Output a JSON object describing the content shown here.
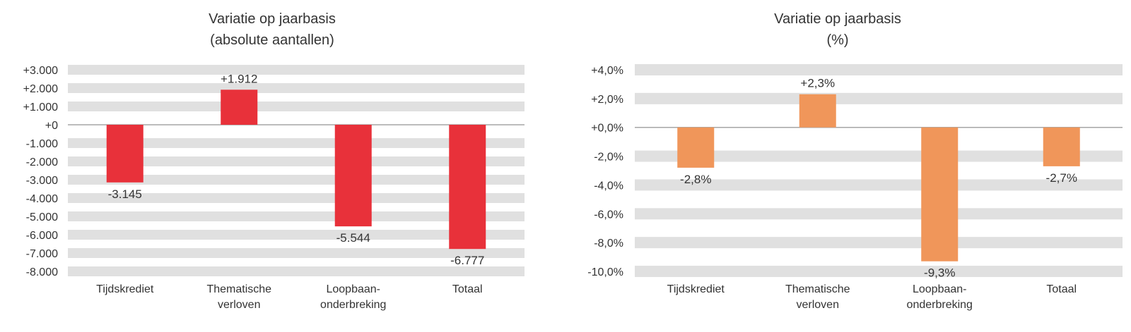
{
  "chart_data": [
    {
      "type": "bar",
      "title": [
        "Variatie op jaarbasis",
        "(absolute aantallen)"
      ],
      "categories": [
        [
          "Tijdskrediet"
        ],
        [
          "Thematische",
          "verloven"
        ],
        [
          "Loopbaan-",
          "onderbreking"
        ],
        [
          "Totaal"
        ]
      ],
      "values": [
        -3145,
        1912,
        -5544,
        -6777
      ],
      "value_labels": [
        "-3.145",
        "+1.912",
        "-5.544",
        "-6.777"
      ],
      "ylim": [
        -8000,
        3000
      ],
      "yticks": [
        3000,
        2000,
        1000,
        0,
        -1000,
        -2000,
        -3000,
        -4000,
        -5000,
        -6000,
        -7000,
        -8000
      ],
      "ytick_labels": [
        "+3.000",
        "+2.000",
        "+1.000",
        "+0",
        "-1.000",
        "-2.000",
        "-3.000",
        "-4.000",
        "-5.000",
        "-6.000",
        "-7.000",
        "-8.000"
      ],
      "bar_color": "#e8313a",
      "band_color": "#e0e0e0",
      "zero_line_color": "#a6a6a6"
    },
    {
      "type": "bar",
      "title": [
        "Variatie op jaarbasis",
        "(%)"
      ],
      "categories": [
        [
          "Tijdskrediet"
        ],
        [
          "Thematische",
          "verloven"
        ],
        [
          "Loopbaan-",
          "onderbreking"
        ],
        [
          "Totaal"
        ]
      ],
      "values": [
        -2.8,
        2.3,
        -9.3,
        -2.7
      ],
      "value_labels": [
        "-2,8%",
        "+2,3%",
        "-9,3%",
        "-2,7%"
      ],
      "ylim": [
        -10,
        4
      ],
      "yticks": [
        4,
        2,
        0,
        -2,
        -4,
        -6,
        -8,
        -10
      ],
      "ytick_labels": [
        "+4,0%",
        "+2,0%",
        "+0,0%",
        "-2,0%",
        "-4,0%",
        "-6,0%",
        "-8,0%",
        "-10,0%"
      ],
      "bar_color": "#f0965a",
      "band_color": "#e0e0e0",
      "zero_line_color": "#a6a6a6"
    }
  ]
}
